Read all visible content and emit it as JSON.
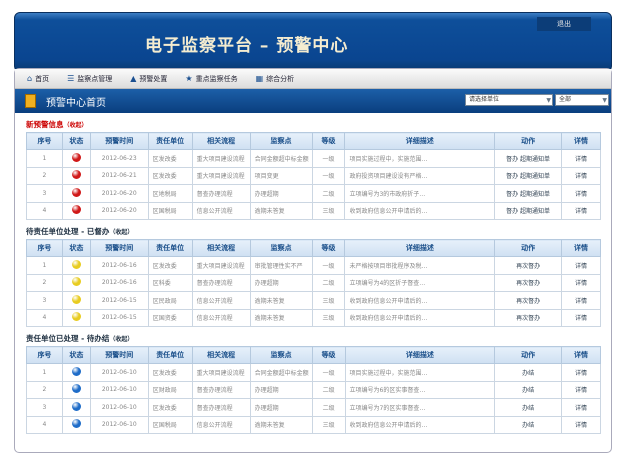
{
  "header": {
    "title": "电子监察平台 – 预警中心",
    "logout": "退出"
  },
  "nav": [
    {
      "icon": "home-icon",
      "glyph": "⌂",
      "label": "首页"
    },
    {
      "icon": "list-icon",
      "glyph": "☰",
      "label": "监察点管理"
    },
    {
      "icon": "warning-icon",
      "glyph": "▲",
      "label": "预警处置"
    },
    {
      "icon": "star-icon",
      "glyph": "★",
      "label": "重点监察任务"
    },
    {
      "icon": "chart-icon",
      "glyph": "▦",
      "label": "综合分析"
    }
  ],
  "page": {
    "title": "预警中心首页",
    "unit_select": "请选择单位",
    "scope_select": "全部"
  },
  "columns": [
    "序号",
    "状态",
    "预警时间",
    "责任单位",
    "相关流程",
    "监察点",
    "等级",
    "详细描述",
    "动作",
    "详情"
  ],
  "status_colors": {
    "red": "#d01818",
    "yellow": "#e8cc20",
    "blue": "#1e6cc8"
  },
  "sections": [
    {
      "title": "新预警信息",
      "collapse": "（收起）",
      "color": "red",
      "status": "red",
      "rows": [
        [
          "1",
          "2012-06-23",
          "区发改委",
          "重大项目建设流程",
          "合同金额超中标金额",
          "一级",
          "项目实施过程中，实施范围…",
          "督办 超期通知单",
          "详情"
        ],
        [
          "2",
          "2012-06-21",
          "区发改委",
          "重大项目建设流程",
          "项目变更",
          "一级",
          "政府投资项目建设没有严格…",
          "督办 超期通知单",
          "详情"
        ],
        [
          "3",
          "2012-06-20",
          "区地税局",
          "督查办理流程",
          "办理超期",
          "二级",
          "立项编号为3的市政府折子…",
          "督办 超期通知单",
          "详情"
        ],
        [
          "4",
          "2012-06-20",
          "区国税局",
          "信息公开流程",
          "逾期未答复",
          "三级",
          "收到政府信息公开申请后的…",
          "督办 超期通知单",
          "详情"
        ]
      ]
    },
    {
      "title": "待责任单位处理 - 已督办",
      "collapse": "（收起）",
      "color": "dark",
      "status": "yellow",
      "rows": [
        [
          "1",
          "2012-06-16",
          "区发改委",
          "重大项目建设流程",
          "审批管理性实不严",
          "一级",
          "未严格按项目审批程序及税…",
          "再次督办",
          "详情"
        ],
        [
          "2",
          "2012-06-16",
          "区科委",
          "督查办理流程",
          "办理超期",
          "二级",
          "立项编号为4的区折子督查…",
          "再次督办",
          "详情"
        ],
        [
          "3",
          "2012-06-15",
          "区民政局",
          "信息公开流程",
          "逾期未答复",
          "三级",
          "收到政府信息公开申请后的…",
          "再次督办",
          "详情"
        ],
        [
          "4",
          "2012-06-15",
          "区国资委",
          "信息公开流程",
          "逾期未答复",
          "三级",
          "收到政府信息公开申请后的…",
          "再次督办",
          "详情"
        ]
      ]
    },
    {
      "title": "责任单位已处理 - 待办结",
      "collapse": "（收起）",
      "color": "dark",
      "status": "blue",
      "rows": [
        [
          "1",
          "2012-06-10",
          "区发改委",
          "重大项目建设流程",
          "合同金额超中标金额",
          "一级",
          "项目实施过程中，实施范围…",
          "办结",
          "详情"
        ],
        [
          "2",
          "2012-06-10",
          "区财政局",
          "督查办理流程",
          "办理超期",
          "二级",
          "立项编号为6的区实事督查…",
          "办结",
          "详情"
        ],
        [
          "3",
          "2012-06-10",
          "区发改委",
          "督查办理流程",
          "办理超期",
          "二级",
          "立项编号为7的区实事督查…",
          "办结",
          "详情"
        ],
        [
          "4",
          "2012-06-10",
          "区国税局",
          "信息公开流程",
          "逾期未答复",
          "三级",
          "收到政府信息公开申请后的…",
          "办结",
          "详情"
        ]
      ]
    }
  ]
}
